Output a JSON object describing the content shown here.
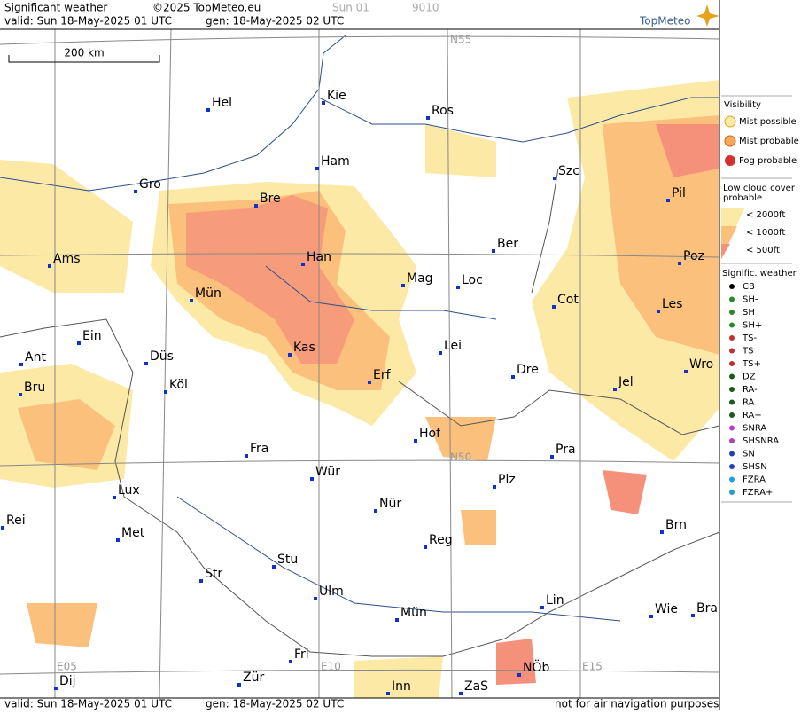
{
  "header": {
    "title": "Significant weather",
    "copyright": "©2025 TopMeteo.eu",
    "run": "Sun 01",
    "code": "9010",
    "valid": "valid:  Sun  18-May-2025  01 UTC",
    "gen": "gen: 18-May-2025 02 UTC",
    "logo": "TopMeteo"
  },
  "map": {
    "scale": "200 km",
    "grid_labels": [
      "N55",
      "N50",
      "E05",
      "E10",
      "E15"
    ],
    "cities": [
      "Hel",
      "Kie",
      "Ros",
      "Ham",
      "Szc",
      "Gro",
      "Bre",
      "Pil",
      "Ber",
      "Ams",
      "Han",
      "Poz",
      "Mag",
      "Loc",
      "Mün",
      "Cot",
      "Les",
      "Ein",
      "Kas",
      "Lei",
      "Ant",
      "Düs",
      "Wro",
      "Erf",
      "Dre",
      "Jel",
      "Bru",
      "Köl",
      "Hof",
      "Fra",
      "Pra",
      "Wür",
      "Plz",
      "Lux",
      "Nür",
      "Rei",
      "Brn",
      "Met",
      "Reg",
      "Stu",
      "Str",
      "Ulm",
      "Lin",
      "Wie",
      "Bra",
      "Mün",
      "Fri",
      "NÖb",
      "Dij",
      "Zür",
      "Inn",
      "ZaS"
    ]
  },
  "legend": {
    "visibility": {
      "title": "Visibility",
      "items": [
        "Mist possible",
        "Mist probable",
        "Fog probable"
      ]
    },
    "low_cloud": {
      "title": "Low cloud cover probable",
      "items": [
        "< 2000ft",
        "< 1000ft",
        "<  500ft"
      ]
    },
    "weather": {
      "title": "Signific. weather",
      "items": [
        "CB",
        "SH-",
        "SH",
        "SH+",
        "TS-",
        "TS",
        "TS+",
        "DZ",
        "RA-",
        "RA",
        "RA+",
        "SNRA",
        "SHSNRA",
        "SN",
        "SHSN",
        "FZRA",
        "FZRA+"
      ]
    }
  },
  "footer": {
    "valid": "valid:  Sun  18-May-2025  01 UTC",
    "gen": "gen: 18-May-2025 02 UTC",
    "note": "not for air navigation purposes"
  }
}
